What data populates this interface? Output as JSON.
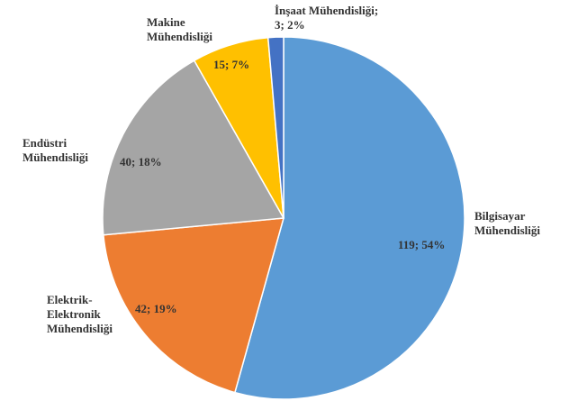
{
  "chart_data": {
    "type": "pie",
    "categories": [
      "Bilgisayar Mühendisliği",
      "Elektrik-Elektronik Mühendisliği",
      "Endüstri Mühendisliği",
      "Makine Mühendisliği",
      "İnşaat Mühendisliği;"
    ],
    "values": [
      119,
      42,
      40,
      15,
      3
    ],
    "value_labels": [
      "119; 54%",
      "42; 19%",
      "40; 18%",
      "15; 7%",
      "3; 2%"
    ],
    "colors": [
      "#5b9bd5",
      "#ed7d31",
      "#a5a5a5",
      "#ffc000",
      "#4472c4"
    ]
  }
}
